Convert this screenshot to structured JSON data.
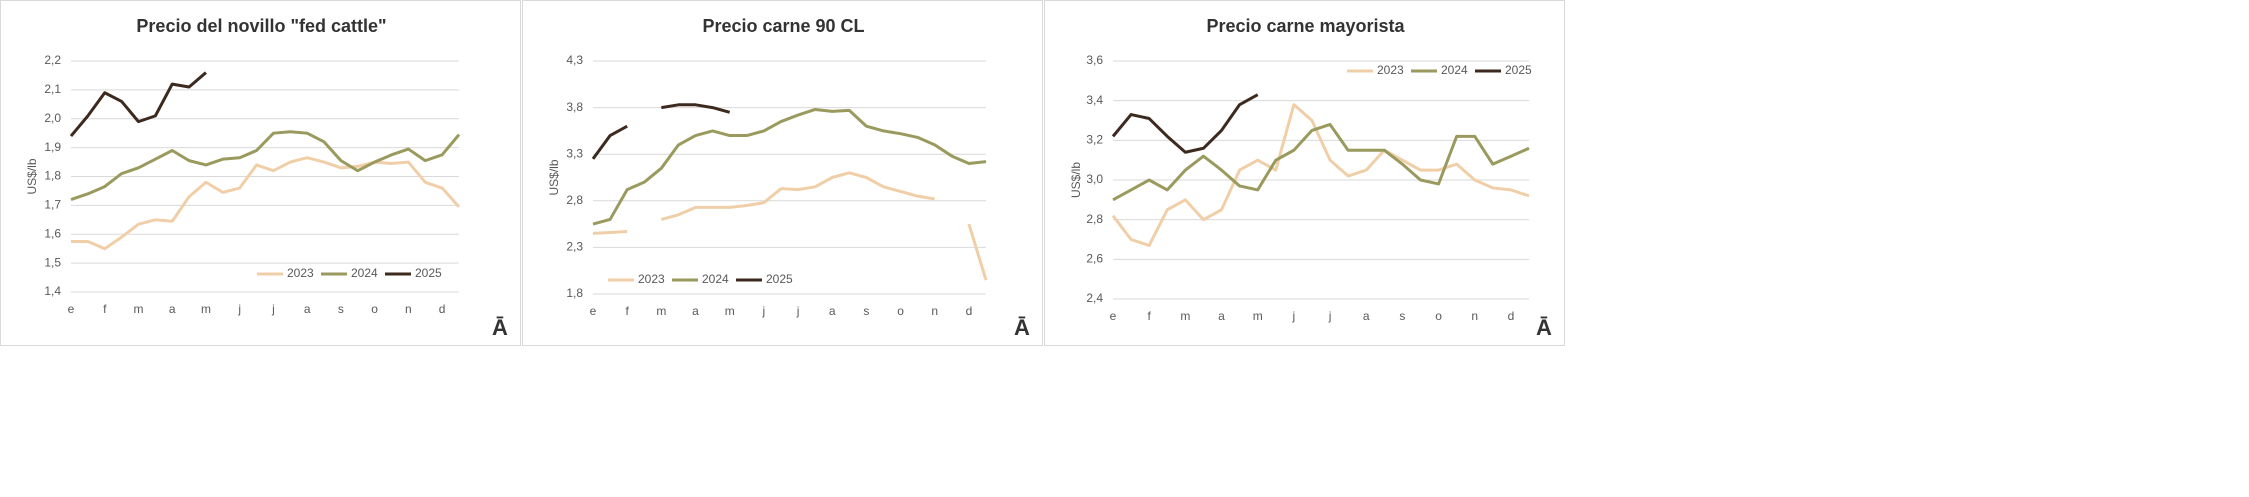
{
  "chart_data": [
    {
      "type": "line",
      "title": "Precio del novillo \"fed cattle\"",
      "y_label": "US$/lb",
      "icon": "Ā",
      "legend": "bottom-right",
      "grid": true,
      "categories": [
        "e",
        null,
        "f",
        null,
        "m",
        null,
        "a",
        null,
        "m",
        null,
        "j",
        null,
        "j",
        null,
        "a",
        null,
        "s",
        null,
        "o",
        null,
        "n",
        null,
        "d",
        null
      ],
      "ylim": [
        1.4,
        2.2
      ],
      "yticks": [
        {
          "value": 1.4,
          "label": "1,4"
        },
        {
          "value": 1.5,
          "label": "1,5"
        },
        {
          "value": 1.6,
          "label": "1,6"
        },
        {
          "value": 1.7,
          "label": "1,7"
        },
        {
          "value": 1.8,
          "label": "1,8"
        },
        {
          "value": 1.9,
          "label": "1,9"
        },
        {
          "value": 2.0,
          "label": "2,0"
        },
        {
          "value": 2.1,
          "label": "2,1"
        },
        {
          "value": 2.2,
          "label": "2,2"
        }
      ],
      "series": [
        {
          "name": "2023",
          "color": "#f0cfa8",
          "values": [
            1.575,
            1.575,
            1.55,
            1.59,
            1.635,
            1.65,
            1.645,
            1.73,
            1.78,
            1.745,
            1.76,
            1.84,
            1.82,
            1.85,
            1.865,
            1.85,
            1.83,
            1.835,
            1.85,
            1.845,
            1.85,
            1.78,
            1.76,
            1.695
          ]
        },
        {
          "name": "2024",
          "color": "#9a9a5e",
          "values": [
            1.72,
            1.74,
            1.765,
            1.81,
            1.83,
            1.86,
            1.89,
            1.855,
            1.84,
            1.86,
            1.865,
            1.89,
            1.95,
            1.955,
            1.95,
            1.92,
            1.855,
            1.82,
            1.85,
            1.875,
            1.895,
            1.855,
            1.875,
            1.945
          ]
        },
        {
          "name": "2025",
          "color": "#3d2a1e",
          "values": [
            1.94,
            2.01,
            2.09,
            2.06,
            1.99,
            2.01,
            2.12,
            2.11,
            2.16,
            null,
            null,
            null,
            null,
            null,
            null,
            null,
            null,
            null,
            null,
            null,
            null,
            null,
            null,
            null
          ]
        }
      ]
    },
    {
      "type": "line",
      "title": "Precio carne 90 CL",
      "y_label": "US$/lb",
      "icon": "Ā",
      "legend": "bottom-left",
      "grid": true,
      "categories": [
        "e",
        null,
        "f",
        null,
        "m",
        null,
        "a",
        null,
        "m",
        null,
        "j",
        null,
        "j",
        null,
        "a",
        null,
        "s",
        null,
        "o",
        null,
        "n",
        null,
        "d",
        null
      ],
      "ylim": [
        1.8,
        4.3
      ],
      "yticks": [
        {
          "value": 1.8,
          "label": "1,8"
        },
        {
          "value": 2.3,
          "label": "2,3"
        },
        {
          "value": 2.8,
          "label": "2,8"
        },
        {
          "value": 3.3,
          "label": "3,3"
        },
        {
          "value": 3.8,
          "label": "3,8"
        },
        {
          "value": 4.3,
          "label": "4,3"
        }
      ],
      "series": [
        {
          "name": "2023",
          "color": "#f0cfa8",
          "values": [
            2.45,
            2.46,
            2.47,
            null,
            2.6,
            2.65,
            2.73,
            2.73,
            2.73,
            2.75,
            2.78,
            2.93,
            2.92,
            2.95,
            3.05,
            3.1,
            3.05,
            2.95,
            2.9,
            2.85,
            2.82,
            null,
            2.55,
            1.95
          ]
        },
        {
          "name": "2024",
          "color": "#9a9a5e",
          "values": [
            2.55,
            2.6,
            2.92,
            3.0,
            3.15,
            3.4,
            3.5,
            3.55,
            3.5,
            3.5,
            3.55,
            3.65,
            3.72,
            3.78,
            3.76,
            3.77,
            3.6,
            3.55,
            3.52,
            3.48,
            3.4,
            3.28,
            3.2,
            3.22
          ]
        },
        {
          "name": "2025",
          "color": "#3d2a1e",
          "values": [
            3.25,
            3.5,
            3.6,
            null,
            3.8,
            3.83,
            3.83,
            3.8,
            3.75,
            null,
            null,
            null,
            null,
            null,
            null,
            null,
            null,
            null,
            null,
            null,
            null,
            null,
            null,
            null
          ]
        }
      ]
    },
    {
      "type": "line",
      "title": "Precio carne mayorista",
      "y_label": "US$/lb",
      "icon": "Ā",
      "legend": "top-right",
      "grid": true,
      "categories": [
        "e",
        null,
        "f",
        null,
        "m",
        null,
        "a",
        null,
        "m",
        null,
        "j",
        null,
        "j",
        null,
        "a",
        null,
        "s",
        null,
        "o",
        null,
        "n",
        null,
        "d",
        null
      ],
      "ylim": [
        2.4,
        3.6
      ],
      "yticks": [
        {
          "value": 2.4,
          "label": "2,4"
        },
        {
          "value": 2.6,
          "label": "2,6"
        },
        {
          "value": 2.8,
          "label": "2,8"
        },
        {
          "value": 3.0,
          "label": "3,0"
        },
        {
          "value": 3.2,
          "label": "3,2"
        },
        {
          "value": 3.4,
          "label": "3,4"
        },
        {
          "value": 3.6,
          "label": "3,6"
        }
      ],
      "series": [
        {
          "name": "2023",
          "color": "#f0cfa8",
          "values": [
            2.82,
            2.7,
            2.67,
            2.85,
            2.9,
            2.8,
            2.85,
            3.05,
            3.1,
            3.05,
            3.38,
            3.3,
            3.1,
            3.02,
            3.05,
            3.15,
            3.1,
            3.05,
            3.05,
            3.08,
            3.0,
            2.96,
            2.95,
            2.92
          ]
        },
        {
          "name": "2024",
          "color": "#9a9a5e",
          "values": [
            2.9,
            2.95,
            3.0,
            2.95,
            3.05,
            3.12,
            3.05,
            2.97,
            2.95,
            3.1,
            3.15,
            3.25,
            3.28,
            3.15,
            3.15,
            3.15,
            3.08,
            3.0,
            2.98,
            3.22,
            3.22,
            3.08,
            3.12,
            3.16
          ]
        },
        {
          "name": "2025",
          "color": "#3d2a1e",
          "values": [
            3.22,
            3.33,
            3.31,
            3.22,
            3.14,
            3.16,
            3.25,
            3.38,
            3.43,
            null,
            null,
            null,
            null,
            null,
            null,
            null,
            null,
            null,
            null,
            null,
            null,
            null,
            null,
            null
          ]
        }
      ]
    }
  ]
}
